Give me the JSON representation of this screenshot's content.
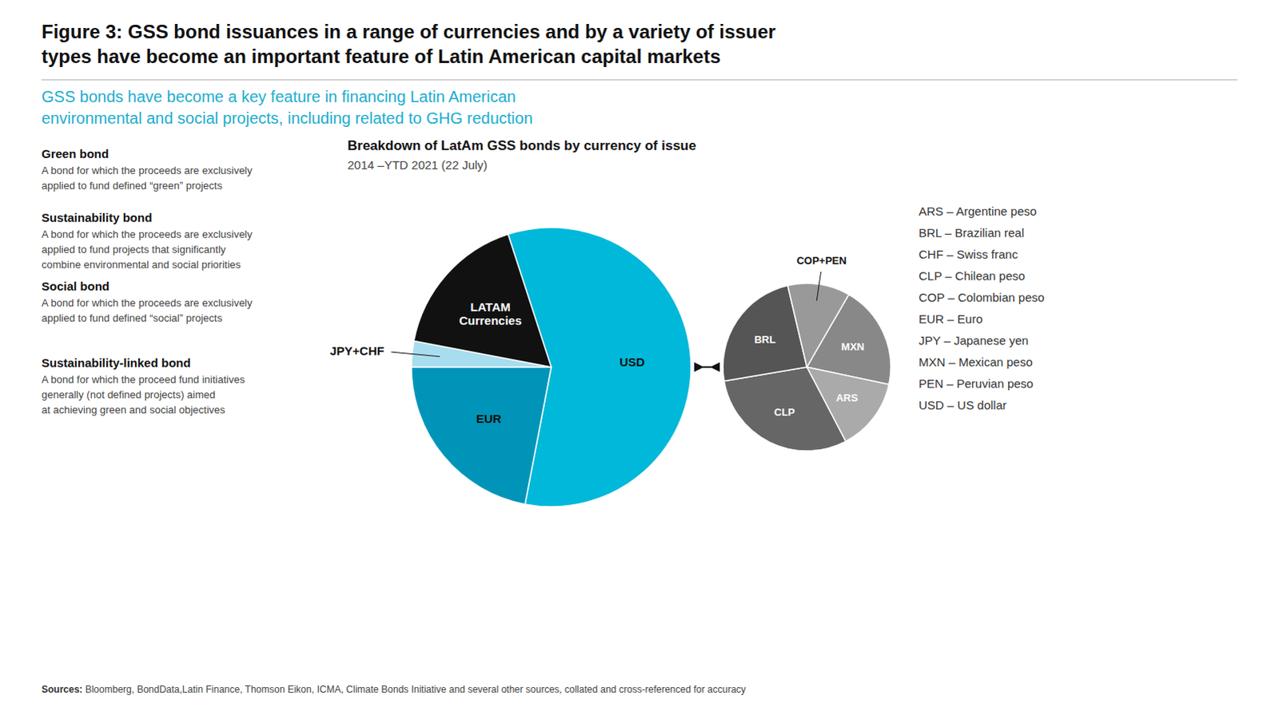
{
  "title": [
    "Figure 3: GSS bond issuances in a range of currencies and by a variety of issuer",
    "types have become an important feature of Latin American capital markets"
  ],
  "subtitle": [
    "GSS bonds have become a key feature in financing Latin American",
    "environmental and social projects, including related to GHG reduction"
  ],
  "definitions": [
    {
      "term": "Green bond",
      "text": "A bond for which the proceeds are exclusively\napplied to fund defined “green” projects"
    },
    {
      "term": "Sustainability bond",
      "text": "A bond for which the proceeds are exclusively\napplied to fund projects that significantly\ncombine environmental and social priorities"
    },
    {
      "term": "Social bond",
      "text": "A bond for which the proceeds are exclusively\napplied to fund defined “social” projects"
    },
    {
      "term": "Sustainability-linked bond",
      "text": "A bond for which the proceed fund initiatives\ngenerally (not defined projects) aimed\nat achieving green and social objectives"
    }
  ],
  "notes": [
    "ARS – Argentine peso",
    "BRL – Brazilian real",
    "CHF – Swiss franc",
    "CLP – Chilean peso",
    "COP – Colombian peso",
    "EUR – Euro",
    "JPY – Japanese yen",
    "MXN – Mexican peso",
    "PEN – Peruvian peso",
    "USD – US dollar"
  ],
  "sources": [
    "Sources:",
    " Bloomberg, BondData,​Latin Finance, Thomson Eikon, ICMA, Climate Bonds Initiative and several other sources, collated and cross-referenced for accuracy"
  ],
  "chart_data": [
    {
      "type": "pie",
      "title": "Breakdown of LatAm GSS bonds by currency of issue",
      "subtitle": "2014 –YTD 2021 (22 July)",
      "categories": [
        "USD",
        "EUR",
        "JPY+CHF",
        "LATAM\nCurrencies"
      ],
      "values": [
        58,
        22,
        3,
        17
      ],
      "colors": [
        "#00b8d9",
        "#0095b8",
        "#a8ddf0",
        "#111111"
      ],
      "data_labels": false
    },
    {
      "type": "pie",
      "categories": [
        "MXN",
        "ARS",
        "CLP",
        "BRL",
        "COP+PEN"
      ],
      "values": [
        20,
        14,
        30,
        24,
        12
      ],
      "colors": [
        "#888888",
        "#aaaaaa",
        "#666666",
        "#555555",
        "#999999"
      ],
      "data_labels": false
    }
  ]
}
